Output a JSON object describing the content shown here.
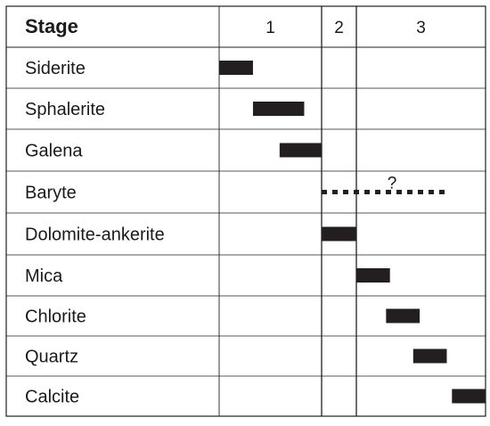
{
  "table": {
    "header_label": "Stage",
    "stages": [
      "1",
      "2",
      "3"
    ],
    "uncertain_marker": "?",
    "bar_color": "#231f20",
    "line_color": "#231f20",
    "minerals": [
      {
        "name": "Siderite",
        "stage": "1",
        "from": 0.0,
        "to": 0.33,
        "style": "solid"
      },
      {
        "name": "Sphalerite",
        "stage": "1",
        "from": 0.33,
        "to": 0.83,
        "style": "solid"
      },
      {
        "name": "Galena",
        "stage": "1",
        "from": 0.59,
        "to": 1.0,
        "style": "solid"
      },
      {
        "name": "Baryte",
        "stage": "2-3",
        "from": 1.0,
        "to": 2.72,
        "style": "dotted",
        "uncertain": true
      },
      {
        "name": "Dolomite-ankerite",
        "stage": "2",
        "from": 1.0,
        "to": 2.0,
        "style": "solid"
      },
      {
        "name": "Mica",
        "stage": "3",
        "from": 2.0,
        "to": 2.26,
        "style": "solid"
      },
      {
        "name": "Chlorite",
        "stage": "3",
        "from": 2.23,
        "to": 2.49,
        "style": "solid"
      },
      {
        "name": "Quartz",
        "stage": "3",
        "from": 2.44,
        "to": 2.7,
        "style": "solid"
      },
      {
        "name": "Calcite",
        "stage": "3",
        "from": 2.74,
        "to": 3.0,
        "style": "solid"
      }
    ]
  }
}
